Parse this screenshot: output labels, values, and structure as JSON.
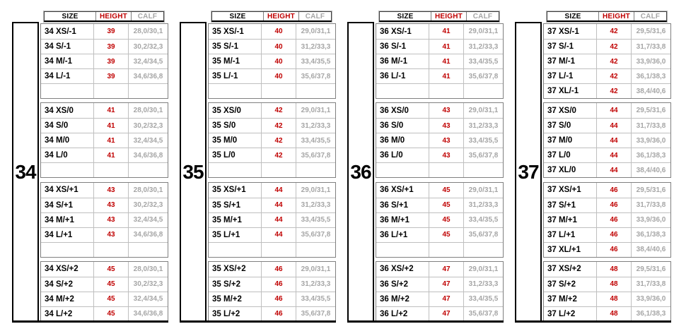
{
  "colors": {
    "size_text": "#000000",
    "height_text": "#c00000",
    "calf_text": "#a6a6a6",
    "block_border": "#808080",
    "row_divider": "#bfbfbf",
    "frame_border": "#000000"
  },
  "header_labels": {
    "size": "SIZE",
    "height": "HEIGHT",
    "calf": "CALF"
  },
  "groups": [
    {
      "label": "34",
      "blocks": [
        {
          "rows": [
            {
              "size": "34 XS/-1",
              "height": "39",
              "calf": "28,0/30,1"
            },
            {
              "size": "34 S/-1",
              "height": "39",
              "calf": "30,2/32,3"
            },
            {
              "size": "34 M/-1",
              "height": "39",
              "calf": "32,4/34,5"
            },
            {
              "size": "34 L/-1",
              "height": "39",
              "calf": "34,6/36,8"
            },
            {
              "size": "",
              "height": "",
              "calf": ""
            }
          ]
        },
        {
          "rows": [
            {
              "size": "34 XS/0",
              "height": "41",
              "calf": "28,0/30,1"
            },
            {
              "size": "34 S/0",
              "height": "41",
              "calf": "30,2/32,3"
            },
            {
              "size": "34 M/0",
              "height": "41",
              "calf": "32,4/34,5"
            },
            {
              "size": "34 L/0",
              "height": "41",
              "calf": "34,6/36,8"
            },
            {
              "size": "",
              "height": "",
              "calf": ""
            }
          ]
        },
        {
          "rows": [
            {
              "size": "34 XS/+1",
              "height": "43",
              "calf": "28,0/30,1"
            },
            {
              "size": "34 S/+1",
              "height": "43",
              "calf": "30,2/32,3"
            },
            {
              "size": "34 M/+1",
              "height": "43",
              "calf": "32,4/34,5"
            },
            {
              "size": "34 L/+1",
              "height": "43",
              "calf": "34,6/36,8"
            },
            {
              "size": "",
              "height": "",
              "calf": ""
            }
          ]
        },
        {
          "rows": [
            {
              "size": "34 XS/+2",
              "height": "45",
              "calf": "28,0/30,1"
            },
            {
              "size": "34 S/+2",
              "height": "45",
              "calf": "30,2/32,3"
            },
            {
              "size": "34 M/+2",
              "height": "45",
              "calf": "32,4/34,5"
            },
            {
              "size": "34 L/+2",
              "height": "45",
              "calf": "34,6/36,8"
            }
          ]
        }
      ]
    },
    {
      "label": "35",
      "blocks": [
        {
          "rows": [
            {
              "size": "35 XS/-1",
              "height": "40",
              "calf": "29,0/31,1"
            },
            {
              "size": "35 S/-1",
              "height": "40",
              "calf": "31,2/33,3"
            },
            {
              "size": "35 M/-1",
              "height": "40",
              "calf": "33,4/35,5"
            },
            {
              "size": "35 L/-1",
              "height": "40",
              "calf": "35,6/37,8"
            },
            {
              "size": "",
              "height": "",
              "calf": ""
            }
          ]
        },
        {
          "rows": [
            {
              "size": "35 XS/0",
              "height": "42",
              "calf": "29,0/31,1"
            },
            {
              "size": "35 S/0",
              "height": "42",
              "calf": "31,2/33,3"
            },
            {
              "size": "35 M/0",
              "height": "42",
              "calf": "33,4/35,5"
            },
            {
              "size": "35 L/0",
              "height": "42",
              "calf": "35,6/37,8"
            },
            {
              "size": "",
              "height": "",
              "calf": ""
            }
          ]
        },
        {
          "rows": [
            {
              "size": "35 XS/+1",
              "height": "44",
              "calf": "29,0/31,1"
            },
            {
              "size": "35 S/+1",
              "height": "44",
              "calf": "31,2/33,3"
            },
            {
              "size": "35 M/+1",
              "height": "44",
              "calf": "33,4/35,5"
            },
            {
              "size": "35 L/+1",
              "height": "44",
              "calf": "35,6/37,8"
            },
            {
              "size": "",
              "height": "",
              "calf": ""
            }
          ]
        },
        {
          "rows": [
            {
              "size": "35 XS/+2",
              "height": "46",
              "calf": "29,0/31,1"
            },
            {
              "size": "35 S/+2",
              "height": "46",
              "calf": "31,2/33,3"
            },
            {
              "size": "35 M/+2",
              "height": "46",
              "calf": "33,4/35,5"
            },
            {
              "size": "35 L/+2",
              "height": "46",
              "calf": "35,6/37,8"
            }
          ]
        }
      ]
    },
    {
      "label": "36",
      "blocks": [
        {
          "rows": [
            {
              "size": "36 XS/-1",
              "height": "41",
              "calf": "29,0/31,1"
            },
            {
              "size": "36 S/-1",
              "height": "41",
              "calf": "31,2/33,3"
            },
            {
              "size": "36 M/-1",
              "height": "41",
              "calf": "33,4/35,5"
            },
            {
              "size": "36 L/-1",
              "height": "41",
              "calf": "35,6/37,8"
            },
            {
              "size": "",
              "height": "",
              "calf": ""
            }
          ]
        },
        {
          "rows": [
            {
              "size": "36 XS/0",
              "height": "43",
              "calf": "29,0/31,1"
            },
            {
              "size": "36 S/0",
              "height": "43",
              "calf": "31,2/33,3"
            },
            {
              "size": "36 M/0",
              "height": "43",
              "calf": "33,4/35,5"
            },
            {
              "size": "36 L/0",
              "height": "43",
              "calf": "35,6/37,8"
            },
            {
              "size": "",
              "height": "",
              "calf": ""
            }
          ]
        },
        {
          "rows": [
            {
              "size": "36 XS/+1",
              "height": "45",
              "calf": "29,0/31,1"
            },
            {
              "size": "36 S/+1",
              "height": "45",
              "calf": "31,2/33,3"
            },
            {
              "size": "36 M/+1",
              "height": "45",
              "calf": "33,4/35,5"
            },
            {
              "size": "36 L/+1",
              "height": "45",
              "calf": "35,6/37,8"
            },
            {
              "size": "",
              "height": "",
              "calf": ""
            }
          ]
        },
        {
          "rows": [
            {
              "size": "36 XS/+2",
              "height": "47",
              "calf": "29,0/31,1"
            },
            {
              "size": "36 S/+2",
              "height": "47",
              "calf": "31,2/33,3"
            },
            {
              "size": "36 M/+2",
              "height": "47",
              "calf": "33,4/35,5"
            },
            {
              "size": "36 L/+2",
              "height": "47",
              "calf": "35,6/37,8"
            }
          ]
        }
      ]
    },
    {
      "label": "37",
      "blocks": [
        {
          "rows": [
            {
              "size": "37 XS/-1",
              "height": "42",
              "calf": "29,5/31,6"
            },
            {
              "size": "37 S/-1",
              "height": "42",
              "calf": "31,7/33,8"
            },
            {
              "size": "37 M/-1",
              "height": "42",
              "calf": "33,9/36,0"
            },
            {
              "size": "37 L/-1",
              "height": "42",
              "calf": "36,1/38,3"
            },
            {
              "size": "37 XL/-1",
              "height": "42",
              "calf": "38,4/40,6"
            }
          ]
        },
        {
          "rows": [
            {
              "size": "37 XS/0",
              "height": "44",
              "calf": "29,5/31,6"
            },
            {
              "size": "37 S/0",
              "height": "44",
              "calf": "31,7/33,8"
            },
            {
              "size": "37 M/0",
              "height": "44",
              "calf": "33,9/36,0"
            },
            {
              "size": "37 L/0",
              "height": "44",
              "calf": "36,1/38,3"
            },
            {
              "size": "37 XL/0",
              "height": "44",
              "calf": "38,4/40,6"
            }
          ]
        },
        {
          "rows": [
            {
              "size": "37 XS/+1",
              "height": "46",
              "calf": "29,5/31,6"
            },
            {
              "size": "37 S/+1",
              "height": "46",
              "calf": "31,7/33,8"
            },
            {
              "size": "37 M/+1",
              "height": "46",
              "calf": "33,9/36,0"
            },
            {
              "size": "37 L/+1",
              "height": "46",
              "calf": "36,1/38,3"
            },
            {
              "size": "37 XL/+1",
              "height": "46",
              "calf": "38,4/40,6"
            }
          ]
        },
        {
          "rows": [
            {
              "size": "37 XS/+2",
              "height": "48",
              "calf": "29,5/31,6"
            },
            {
              "size": "37 S/+2",
              "height": "48",
              "calf": "31,7/33,8"
            },
            {
              "size": "37 M/+2",
              "height": "48",
              "calf": "33,9/36,0"
            },
            {
              "size": "37 L/+2",
              "height": "48",
              "calf": "36,1/38,3"
            }
          ]
        }
      ]
    }
  ]
}
